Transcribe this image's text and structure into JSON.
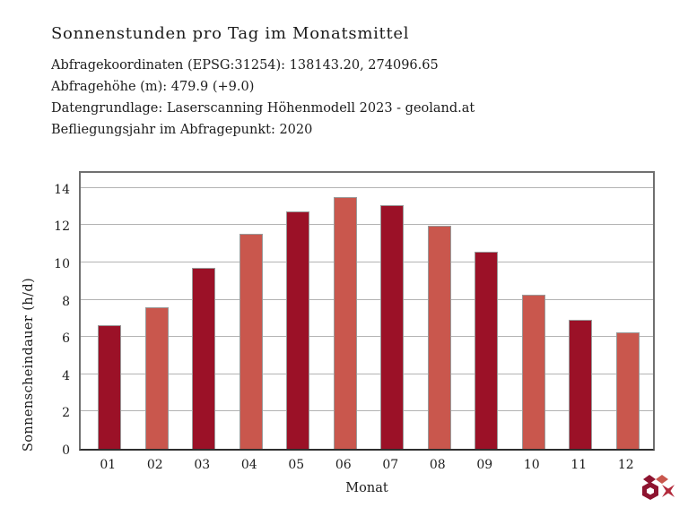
{
  "header": {
    "title": "Sonnenstunden pro Tag im Monatsmittel",
    "meta_lines": [
      "Abfragekoordinaten (EPSG:31254): 138143.20, 274096.65",
      "Abfragehöhe (m): 479.9 (+9.0)",
      "Datengrundlage: Laserscanning Höhenmodell 2023 - geoland.at",
      "Befliegungsjahr im Abfragepunkt: 2020"
    ]
  },
  "chart_data": {
    "type": "bar",
    "title": "Sonnenstunden pro Tag im Monatsmittel",
    "categories": [
      "01",
      "02",
      "03",
      "04",
      "05",
      "06",
      "07",
      "08",
      "09",
      "10",
      "11",
      "12"
    ],
    "values": [
      6.65,
      7.6,
      9.7,
      11.55,
      12.75,
      13.5,
      13.1,
      11.95,
      10.6,
      8.25,
      6.9,
      6.25
    ],
    "xlabel": "Monat",
    "ylabel": "Sonnenscheindauer (h/d)",
    "ylim": [
      0,
      15
    ],
    "yticks": [
      0,
      2,
      4,
      6,
      8,
      10,
      12,
      14
    ],
    "grid": true,
    "legend": "none",
    "bar_colors_alternating": [
      "#9B1127",
      "#C9574D"
    ],
    "bar_edge_color": "#9a9a9a"
  },
  "footer": {
    "logo_icon": "geoland-cube-star-logo",
    "logo_colors": {
      "dark": "#8E1430",
      "mid": "#B2293B",
      "light": "#C9574D"
    }
  }
}
